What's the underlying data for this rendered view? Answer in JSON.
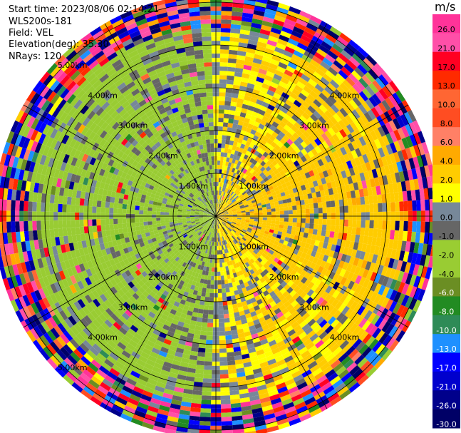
{
  "header": {
    "start_time": "Start time: 2023/08/06 02:14:21",
    "instrument": "WLS200s-181",
    "field": "Field: VEL",
    "elevation": "Elevation(deg): 35.30",
    "nrays": "NRays: 120"
  },
  "chart_data": {
    "type": "heatmap",
    "subtype": "polar-ppi",
    "field": "VEL",
    "units": "m/s",
    "n_rays": 120,
    "range_rings_km": [
      1.0,
      2.0,
      3.0,
      4.0,
      5.0
    ],
    "range_ring_labels": [
      "1.00km",
      "2.00km",
      "3.00km",
      "4.00km",
      "5.00km"
    ],
    "spoke_angles_deg": [
      0,
      30,
      60,
      90,
      120,
      150,
      180,
      210,
      240,
      270,
      300,
      330
    ],
    "max_range_km": 5.2,
    "colorbar": {
      "title": "m/s",
      "tick_labels": [
        "26.0",
        "21.0",
        "17.0",
        "13.0",
        "10.0",
        "8.0",
        "6.0",
        "4.0",
        "2.0",
        "1.0",
        "0.0",
        "-1.0",
        "-2.0",
        "-4.0",
        "-6.0",
        "-8.0",
        "-10.0",
        "-13.0",
        "-17.0",
        "-21.0",
        "-26.0",
        "-30.0"
      ],
      "bins": [
        {
          "min": 26,
          "max": 30,
          "color": "#ff3399"
        },
        {
          "min": 21,
          "max": 26,
          "color": "#ff4fa8"
        },
        {
          "min": 17,
          "max": 21,
          "color": "#ff0022"
        },
        {
          "min": 13,
          "max": 17,
          "color": "#ff2a00"
        },
        {
          "min": 10,
          "max": 13,
          "color": "#ff6633"
        },
        {
          "min": 8,
          "max": 10,
          "color": "#ff4d22"
        },
        {
          "min": 6,
          "max": 8,
          "color": "#ff8066"
        },
        {
          "min": 4,
          "max": 6,
          "color": "#ffaa00"
        },
        {
          "min": 2,
          "max": 4,
          "color": "#ffcc00"
        },
        {
          "min": 1,
          "max": 2,
          "color": "#ffff00"
        },
        {
          "min": 0,
          "max": 1,
          "color": "#778899"
        },
        {
          "min": -1,
          "max": 0,
          "color": "#666666"
        },
        {
          "min": -2,
          "max": -1,
          "color": "#9acd32"
        },
        {
          "min": -4,
          "max": -2,
          "color": "#99cc33"
        },
        {
          "min": -6,
          "max": -4,
          "color": "#6b8e23"
        },
        {
          "min": -8,
          "max": -6,
          "color": "#228b22"
        },
        {
          "min": -10,
          "max": -8,
          "color": "#2e8b57"
        },
        {
          "min": -13,
          "max": -10,
          "color": "#1e90ff"
        },
        {
          "min": -17,
          "max": -13,
          "color": "#0000ff"
        },
        {
          "min": -21,
          "max": -17,
          "color": "#0000cd"
        },
        {
          "min": -26,
          "max": -21,
          "color": "#00008b"
        },
        {
          "min": -30,
          "max": -26,
          "color": "#000066"
        }
      ]
    },
    "pattern_summary": {
      "positive_sector_center_deg": 90,
      "positive_value_ms": 2.0,
      "negative_sector_center_deg": 270,
      "negative_value_ms": -3.0,
      "noise_beyond_km": 4.3
    }
  }
}
